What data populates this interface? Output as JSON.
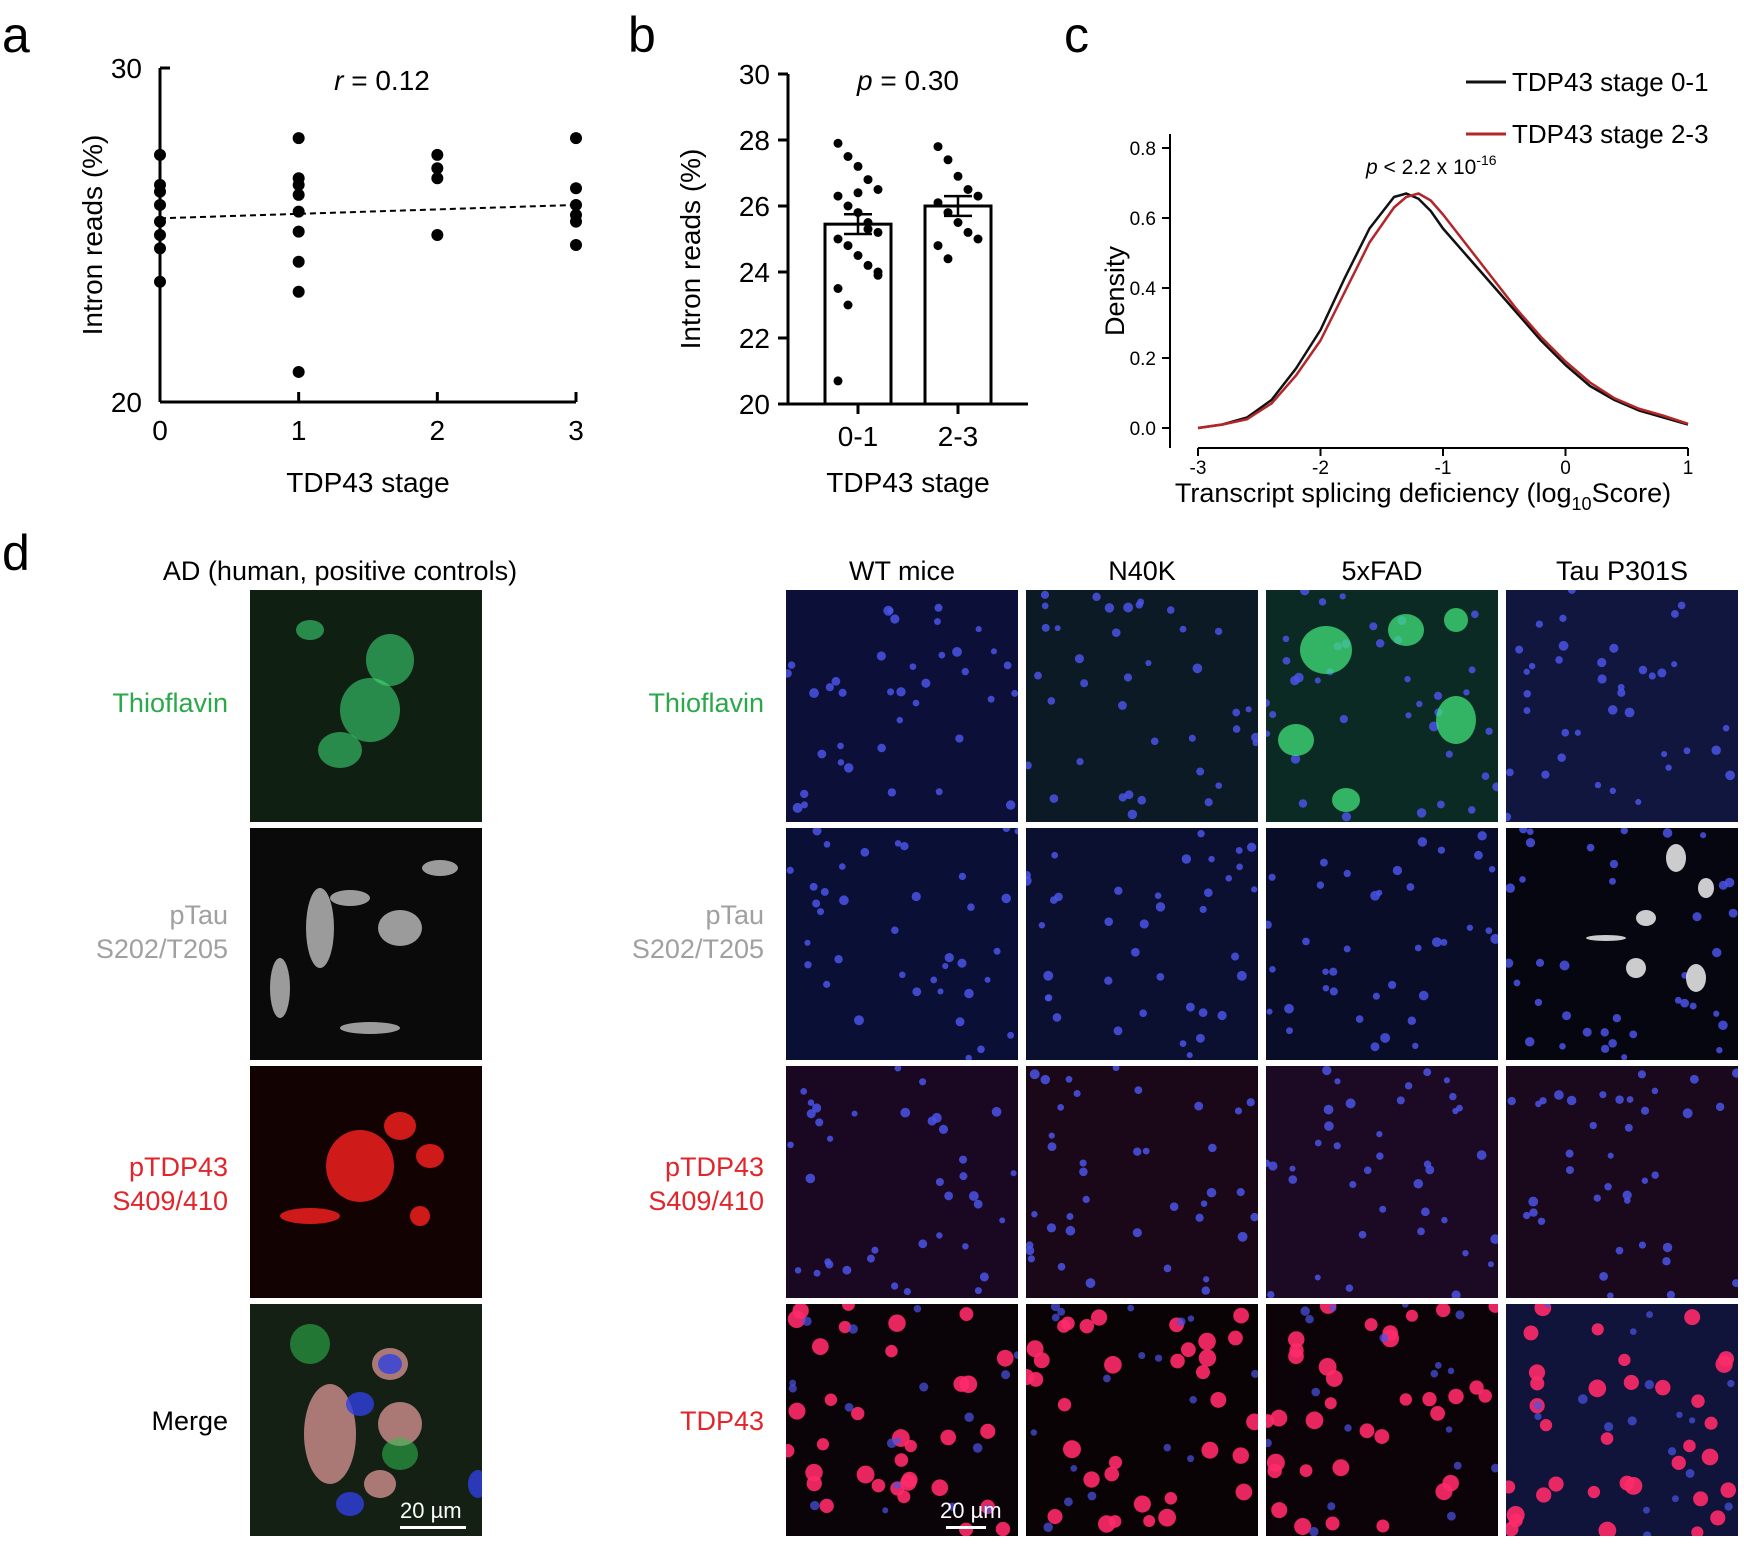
{
  "panel_letters": {
    "a": "a",
    "b": "b",
    "c": "c",
    "d": "d"
  },
  "colors": {
    "green_label": "#2aa84a",
    "grey_label": "#a0a0a0",
    "red_label": "#e0262b",
    "stage01_line": "#111111",
    "stage23_line": "#b3262a",
    "nucleus_blue": "#4a54e6",
    "thioflavin_green": "#3fe37a",
    "tdp43_red": "#ff2a6a"
  },
  "chart_data": [
    {
      "id": "a",
      "type": "scatter",
      "title": "",
      "annotation": {
        "italic": "r",
        "text": " = 0.12"
      },
      "xlabel": "TDP43 stage",
      "ylabel": "Intron reads (%)",
      "xlim": [
        0,
        3
      ],
      "ylim": [
        20,
        30
      ],
      "xticks": [
        "0",
        "1",
        "2",
        "3"
      ],
      "yticks": [
        "20",
        "30"
      ],
      "points": [
        {
          "x": 0,
          "ys": [
            27.4,
            26.5,
            26.3,
            25.9,
            25.4,
            25.0,
            24.6,
            23.6
          ]
        },
        {
          "x": 1,
          "ys": [
            27.9,
            26.7,
            26.5,
            26.2,
            25.7,
            25.1,
            24.2,
            23.3,
            20.9
          ]
        },
        {
          "x": 2,
          "ys": [
            27.4,
            27.0,
            26.7,
            25.0
          ]
        },
        {
          "x": 3,
          "ys": [
            27.9,
            26.4,
            25.9,
            25.6,
            25.4,
            24.7
          ]
        }
      ],
      "trend_line": {
        "x": [
          0,
          3
        ],
        "y": [
          25.5,
          25.9
        ],
        "style": "dashed"
      }
    },
    {
      "id": "b",
      "type": "bar",
      "title": "",
      "annotation": {
        "italic": "p",
        "text": " = 0.30"
      },
      "xlabel": "TDP43 stage",
      "ylabel": "Intron reads (%)",
      "categories": [
        "0-1",
        "2-3"
      ],
      "values": [
        25.45,
        26.0
      ],
      "sem": [
        0.3,
        0.3
      ],
      "ylim": [
        20,
        30
      ],
      "yticks": [
        "20",
        "22",
        "24",
        "26",
        "28",
        "30"
      ],
      "points": [
        [
          27.9,
          27.5,
          27.2,
          26.8,
          26.5,
          26.3,
          26.0,
          25.8,
          25.5,
          25.2,
          25.0,
          24.8,
          24.5,
          24.2,
          23.9,
          23.5,
          23.0,
          26.4,
          25.3,
          24.0,
          20.7
        ],
        [
          27.8,
          27.4,
          26.9,
          26.5,
          26.3,
          26.1,
          25.8,
          25.5,
          25.2,
          25.0,
          24.8,
          24.4
        ]
      ]
    },
    {
      "id": "c",
      "type": "line",
      "title": "",
      "annotation": {
        "italic": "p",
        "text": " < 2.2 x 10",
        "sup": "-16"
      },
      "xlabel": "Transcript splicing deficiency (log",
      "xlabel_sub": "10",
      "xlabel_tail": "Score)",
      "ylabel": "Density",
      "xlim": [
        -3,
        1
      ],
      "ylim": [
        0,
        0.85
      ],
      "xticks": [
        "-3",
        "-2",
        "-1",
        "0",
        "1"
      ],
      "yticks": [
        "0.0",
        "0.2",
        "0.4",
        "0.6",
        "0.8"
      ],
      "series": [
        {
          "name": "TDP43 stage 0-1",
          "x": [
            -3.0,
            -2.8,
            -2.6,
            -2.4,
            -2.2,
            -2.0,
            -1.8,
            -1.6,
            -1.4,
            -1.3,
            -1.2,
            -1.1,
            -1.0,
            -0.8,
            -0.6,
            -0.4,
            -0.2,
            0.0,
            0.2,
            0.4,
            0.6,
            0.8,
            1.0
          ],
          "y": [
            0.0,
            0.01,
            0.03,
            0.08,
            0.17,
            0.28,
            0.43,
            0.57,
            0.66,
            0.67,
            0.655,
            0.62,
            0.57,
            0.49,
            0.41,
            0.33,
            0.25,
            0.18,
            0.12,
            0.08,
            0.05,
            0.03,
            0.01
          ]
        },
        {
          "name": "TDP43 stage 2-3",
          "x": [
            -3.0,
            -2.8,
            -2.6,
            -2.4,
            -2.2,
            -2.0,
            -1.8,
            -1.6,
            -1.4,
            -1.3,
            -1.2,
            -1.1,
            -1.0,
            -0.8,
            -0.6,
            -0.4,
            -0.2,
            0.0,
            0.2,
            0.4,
            0.6,
            0.8,
            1.0
          ],
          "y": [
            0.0,
            0.01,
            0.025,
            0.07,
            0.15,
            0.25,
            0.39,
            0.53,
            0.63,
            0.66,
            0.67,
            0.65,
            0.61,
            0.52,
            0.43,
            0.34,
            0.26,
            0.19,
            0.13,
            0.085,
            0.055,
            0.035,
            0.012
          ]
        }
      ],
      "legend_position": "top-right"
    }
  ],
  "panel_d": {
    "left_title": "AD (human, positive controls)",
    "right_columns": [
      "WT mice",
      "N40K",
      "5xFAD",
      "Tau P301S"
    ],
    "rows": [
      {
        "label": "Thioflavin",
        "color": "green"
      },
      {
        "label": "pTau\nS202/T205",
        "color": "grey"
      },
      {
        "label": "pTDP43\nS409/410",
        "color": "red"
      },
      {
        "label": "Merge",
        "color": "black"
      }
    ],
    "right_rows": [
      {
        "label": "Thioflavin",
        "color": "green"
      },
      {
        "label": "pTau\nS202/T205",
        "color": "grey"
      },
      {
        "label": "pTDP43\nS409/410",
        "color": "red"
      },
      {
        "label": "TDP43",
        "color": "red"
      }
    ],
    "scale_bar_left": "20 µm",
    "scale_bar_right": "20 µm"
  }
}
